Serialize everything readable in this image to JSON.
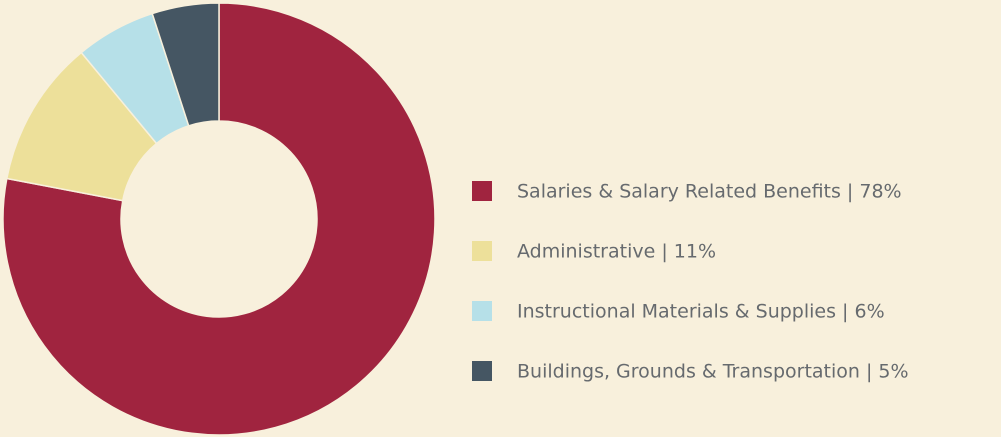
{
  "chart_data": {
    "type": "donut",
    "categories": [
      "Salaries & Salary Related Benefits | 78%",
      "Administrative | 11%",
      "Instructional Materials & Supplies | 6%",
      "Buildings, Grounds & Transportation | 5%"
    ],
    "values": [
      78,
      11,
      6,
      5
    ],
    "colors": [
      "#a0243f",
      "#ede09a",
      "#b6e0e8",
      "#455663"
    ],
    "legend": "right"
  }
}
